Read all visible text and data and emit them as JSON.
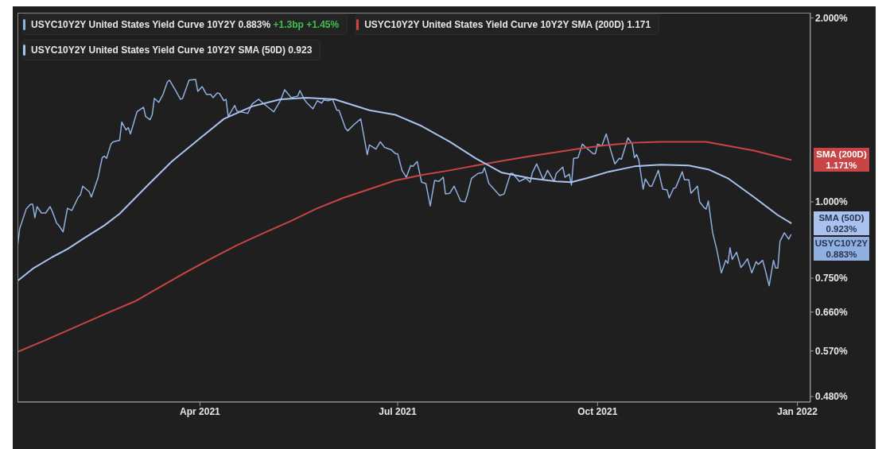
{
  "chart_data": {
    "type": "line",
    "log": "y",
    "legend": "right",
    "xlim": [
      "2021-01-07",
      "2022-01-07"
    ],
    "xticks": [
      {
        "value": "2021-04-01",
        "label": "Apr 2021"
      },
      {
        "value": "2021-07-01",
        "label": "Jul 2021"
      },
      {
        "value": "2021-10-01",
        "label": "Oct 2021"
      },
      {
        "value": "2022-01-01",
        "label": "Jan 2022"
      }
    ],
    "ylim": [
      0.47,
      2.04
    ],
    "yticks": [
      {
        "value": 0.48,
        "label": "0.480%"
      },
      {
        "value": 0.57,
        "label": "0.570%"
      },
      {
        "value": 0.66,
        "label": "0.660%"
      },
      {
        "value": 0.75,
        "label": "0.750%"
      },
      {
        "value": 1,
        "label": "1.000%"
      },
      {
        "value": 2,
        "label": "2.000%"
      }
    ],
    "annotations": [
      "USYC10Y2Y United States Yield Curve 10Y2Y 0.883% +1.3bp +1.45%",
      "USYC10Y2Y United States Yield Curve 10Y2Y SMA (200D) 1.171",
      "USYC10Y2Y United States Yield Curve 10Y2Y SMA (50D) 0.923",
      "0.883%",
      "1.171%",
      "0.923%"
    ],
    "series": [
      {
        "name": "USYC10Y2Y",
        "color": "#8fb0e0",
        "x": [
          "2021-01-07",
          "2021-01-08",
          "2021-01-11",
          "2021-01-13",
          "2021-01-14",
          "2021-01-15",
          "2021-01-16",
          "2021-01-18",
          "2021-01-20",
          "2021-01-22",
          "2021-01-23",
          "2021-01-25",
          "2021-01-26",
          "2021-01-28",
          "2021-01-30",
          "2021-02-01",
          "2021-02-04",
          "2021-02-05",
          "2021-02-06",
          "2021-02-09",
          "2021-02-10",
          "2021-02-13",
          "2021-02-15",
          "2021-02-16",
          "2021-02-17",
          "2021-02-19",
          "2021-02-20",
          "2021-02-23",
          "2021-02-24",
          "2021-02-26",
          "2021-02-27",
          "2021-02-28",
          "2021-03-03",
          "2021-03-06",
          "2021-03-07",
          "2021-03-09",
          "2021-03-10",
          "2021-03-11",
          "2021-03-13",
          "2021-03-15",
          "2021-03-17",
          "2021-03-18",
          "2021-03-21",
          "2021-03-23",
          "2021-03-24",
          "2021-03-27",
          "2021-03-30",
          "2021-03-31",
          "2021-04-02",
          "2021-04-04",
          "2021-04-06",
          "2021-04-07",
          "2021-04-09",
          "2021-04-10",
          "2021-04-12",
          "2021-04-13",
          "2021-04-14",
          "2021-04-17",
          "2021-04-18",
          "2021-04-23",
          "2021-04-25",
          "2021-04-28",
          "2021-04-30",
          "2021-05-05",
          "2021-05-08",
          "2021-05-10",
          "2021-05-13",
          "2021-05-16",
          "2021-05-17",
          "2021-05-19",
          "2021-05-20",
          "2021-05-23",
          "2021-05-25",
          "2021-05-27",
          "2021-05-28",
          "2021-05-30",
          "2021-06-01",
          "2021-06-03",
          "2021-06-04",
          "2021-06-07",
          "2021-06-08",
          "2021-06-11",
          "2021-06-14",
          "2021-06-17",
          "2021-06-18",
          "2021-06-21",
          "2021-06-23",
          "2021-06-25",
          "2021-06-28",
          "2021-06-30",
          "2021-07-01",
          "2021-07-03",
          "2021-07-05",
          "2021-07-07",
          "2021-07-08",
          "2021-07-10",
          "2021-07-12",
          "2021-07-14",
          "2021-07-16",
          "2021-07-18",
          "2021-07-20",
          "2021-07-22",
          "2021-07-23",
          "2021-07-25",
          "2021-07-27",
          "2021-07-30",
          "2021-08-01",
          "2021-08-02",
          "2021-08-04",
          "2021-08-07",
          "2021-08-09",
          "2021-08-10",
          "2021-08-12",
          "2021-08-15",
          "2021-08-17",
          "2021-08-19",
          "2021-08-22",
          "2021-08-23",
          "2021-08-26",
          "2021-08-29",
          "2021-08-31",
          "2021-09-01",
          "2021-09-03",
          "2021-09-06",
          "2021-09-08",
          "2021-09-11",
          "2021-09-12",
          "2021-09-15",
          "2021-09-16",
          "2021-09-18",
          "2021-09-19",
          "2021-09-20",
          "2021-09-22",
          "2021-09-24",
          "2021-09-26",
          "2021-09-29",
          "2021-09-30",
          "2021-10-01",
          "2021-10-03",
          "2021-10-05",
          "2021-10-07",
          "2021-10-09",
          "2021-10-11",
          "2021-10-12",
          "2021-10-15",
          "2021-10-17",
          "2021-10-18",
          "2021-10-19",
          "2021-10-20",
          "2021-10-22",
          "2021-10-23",
          "2021-10-25",
          "2021-10-26",
          "2021-10-29",
          "2021-10-31",
          "2021-11-02",
          "2021-11-03",
          "2021-11-05",
          "2021-11-06",
          "2021-11-09",
          "2021-11-10",
          "2021-11-12",
          "2021-11-13",
          "2021-11-16",
          "2021-11-17",
          "2021-11-19",
          "2021-11-20",
          "2021-11-21",
          "2021-11-23",
          "2021-11-25",
          "2021-11-27",
          "2021-11-29",
          "2021-11-30",
          "2021-12-01",
          "2021-12-02",
          "2021-12-04",
          "2021-12-06",
          "2021-12-07",
          "2021-12-09",
          "2021-12-11",
          "2021-12-13",
          "2021-12-14",
          "2021-12-16",
          "2021-12-17",
          "2021-12-19",
          "2021-12-21",
          "2021-12-22",
          "2021-12-23",
          "2021-12-24",
          "2021-12-26",
          "2021-12-28",
          "2021-12-29"
        ],
        "values": [
          0.844,
          0.904,
          0.973,
          0.991,
          0.991,
          0.942,
          0.982,
          0.959,
          0.959,
          0.982,
          0.965,
          0.923,
          0.915,
          0.893,
          0.976,
          0.968,
          1.018,
          1.027,
          1.061,
          1.039,
          1.018,
          1.093,
          1.181,
          1.188,
          1.178,
          1.243,
          1.254,
          1.261,
          1.351,
          1.311,
          1.323,
          1.292,
          1.404,
          1.429,
          1.379,
          1.363,
          1.388,
          1.477,
          1.455,
          1.499,
          1.572,
          1.582,
          1.517,
          1.472,
          1.477,
          1.582,
          1.586,
          1.517,
          1.544,
          1.499,
          1.499,
          1.481,
          1.508,
          1.504,
          1.464,
          1.472,
          1.379,
          1.438,
          1.408,
          1.396,
          1.446,
          1.472,
          1.451,
          1.404,
          1.464,
          1.526,
          1.481,
          1.49,
          1.521,
          1.472,
          1.455,
          1.42,
          1.464,
          1.451,
          1.468,
          1.464,
          1.472,
          1.412,
          1.412,
          1.319,
          1.307,
          1.339,
          1.367,
          1.195,
          1.239,
          1.22,
          1.254,
          1.228,
          1.217,
          1.199,
          1.199,
          1.126,
          1.097,
          1.147,
          1.143,
          1.164,
          1.077,
          1.071,
          0.985,
          1.084,
          1.08,
          1.097,
          1.03,
          1.033,
          1.061,
          1.003,
          1.0,
          1.024,
          1.093,
          1.113,
          1.116,
          1.137,
          1.071,
          1.043,
          1.024,
          1.03,
          1.113,
          1.113,
          1.08,
          1.093,
          1.077,
          1.116,
          1.154,
          1.087,
          1.126,
          1.08,
          1.113,
          1.14,
          1.097,
          1.11,
          1.065,
          1.178,
          1.181,
          1.243,
          1.224,
          1.199,
          1.199,
          1.243,
          1.235,
          1.292,
          1.217,
          1.154,
          1.178,
          1.174,
          1.273,
          1.243,
          1.181,
          1.195,
          1.171,
          1.049,
          1.09,
          1.061,
          1.061,
          1.126,
          1.049,
          1.046,
          1.015,
          1.052,
          1.055,
          1.12,
          1.087,
          1.087,
          1.033,
          1.061,
          1.0,
          0.979,
          0.973,
          1.003,
          0.89,
          0.832,
          0.765,
          0.802,
          0.793,
          0.841,
          0.805,
          0.827,
          0.781,
          0.788,
          0.807,
          0.765,
          0.798,
          0.79,
          0.802,
          0.779,
          0.729,
          0.802,
          0.779,
          0.779,
          0.862,
          0.89,
          0.869,
          0.883
        ]
      },
      {
        "name": "SMA (200D)",
        "color": "#c94545",
        "x": [
          "2021-01-07",
          "2021-01-20",
          "2021-02-04",
          "2021-02-18",
          "2021-03-02",
          "2021-03-13",
          "2021-03-25",
          "2021-04-06",
          "2021-04-18",
          "2021-04-30",
          "2021-05-13",
          "2021-05-25",
          "2021-06-06",
          "2021-06-18",
          "2021-06-30",
          "2021-07-12",
          "2021-07-25",
          "2021-08-06",
          "2021-08-18",
          "2021-08-31",
          "2021-09-12",
          "2021-09-24",
          "2021-10-06",
          "2021-10-18",
          "2021-10-30",
          "2021-11-12",
          "2021-11-20",
          "2021-11-30",
          "2021-12-12",
          "2021-12-29"
        ],
        "values": [
          0.568,
          0.594,
          0.627,
          0.659,
          0.687,
          0.723,
          0.765,
          0.807,
          0.849,
          0.888,
          0.931,
          0.976,
          1.015,
          1.049,
          1.084,
          1.106,
          1.126,
          1.147,
          1.167,
          1.188,
          1.206,
          1.224,
          1.239,
          1.25,
          1.254,
          1.254,
          1.254,
          1.235,
          1.213,
          1.171
        ]
      },
      {
        "name": "SMA (50D)",
        "color": "#a9c3ee",
        "x": [
          "2021-01-07",
          "2021-01-14",
          "2021-01-23",
          "2021-01-30",
          "2021-02-06",
          "2021-02-16",
          "2021-02-23",
          "2021-03-08",
          "2021-03-19",
          "2021-03-30",
          "2021-04-12",
          "2021-04-25",
          "2021-05-08",
          "2021-05-20",
          "2021-06-02",
          "2021-06-18",
          "2021-06-30",
          "2021-07-12",
          "2021-07-25",
          "2021-08-06",
          "2021-08-18",
          "2021-08-31",
          "2021-09-12",
          "2021-09-19",
          "2021-09-26",
          "2021-10-06",
          "2021-10-18",
          "2021-10-30",
          "2021-11-12",
          "2021-11-21",
          "2021-11-30",
          "2021-12-12",
          "2021-12-23",
          "2021-12-29"
        ],
        "values": [
          0.742,
          0.777,
          0.812,
          0.837,
          0.869,
          0.915,
          0.956,
          1.065,
          1.164,
          1.254,
          1.367,
          1.433,
          1.472,
          1.481,
          1.472,
          1.412,
          1.388,
          1.331,
          1.254,
          1.178,
          1.116,
          1.093,
          1.08,
          1.077,
          1.093,
          1.12,
          1.143,
          1.15,
          1.147,
          1.13,
          1.093,
          1.018,
          0.951,
          0.923
        ]
      }
    ]
  }
}
